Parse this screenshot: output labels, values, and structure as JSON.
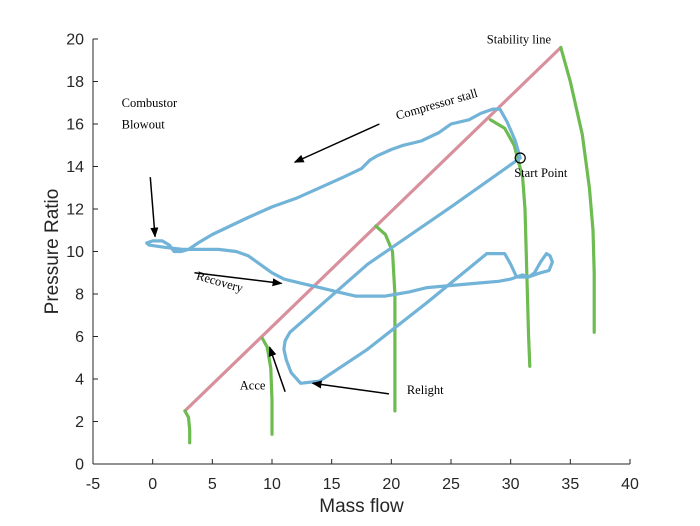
{
  "chart_data": {
    "type": "line",
    "xlabel": "Mass flow",
    "ylabel": "Pressure Ratio",
    "xlim": [
      -5,
      40
    ],
    "ylim": [
      0,
      20
    ],
    "x_ticks": [
      -5,
      0,
      5,
      10,
      15,
      20,
      25,
      30,
      35,
      40
    ],
    "y_ticks": [
      0,
      2,
      4,
      6,
      8,
      10,
      12,
      14,
      16,
      18,
      20
    ],
    "grid": false,
    "series": [
      {
        "color": "#d8909c",
        "style": "line",
        "x": [
          2.7,
          34.2
        ],
        "y": [
          2.5,
          19.6
        ]
      },
      {
        "color": "#6dbb51",
        "style": "line",
        "x": [
          34.2,
          35.0,
          36.0,
          36.6,
          36.9,
          37.0,
          37.0,
          37.0
        ],
        "y": [
          19.6,
          18.0,
          15.5,
          13.0,
          11.0,
          9.0,
          7.5,
          6.2
        ]
      },
      {
        "color": "#6dbb51",
        "style": "line",
        "x": [
          28.3,
          29.5,
          30.3,
          31.0,
          31.2,
          31.3,
          31.4,
          31.5,
          31.6
        ],
        "y": [
          16.2,
          15.8,
          15.0,
          13.5,
          12.0,
          10.0,
          8.0,
          6.0,
          4.6
        ]
      },
      {
        "color": "#6dbb51",
        "style": "line",
        "x": [
          18.7,
          19.5,
          20.1,
          20.3,
          20.3,
          20.3
        ],
        "y": [
          11.2,
          10.8,
          10.0,
          8.0,
          5.0,
          2.5
        ]
      },
      {
        "color": "#6dbb51",
        "style": "line",
        "x": [
          9.2,
          9.6,
          9.9,
          10.0,
          10.0
        ],
        "y": [
          5.9,
          5.5,
          4.5,
          3.0,
          1.4
        ]
      },
      {
        "color": "#6dbb51",
        "style": "line",
        "x": [
          2.7,
          3.0,
          3.1,
          3.1
        ],
        "y": [
          2.5,
          2.2,
          1.6,
          1.0
        ]
      },
      {
        "color": "#72b3d8",
        "style": "line",
        "x": [
          30.8,
          30.4,
          29.7,
          29.2,
          29.1,
          28.5,
          27.5,
          26.5,
          25.0,
          24.0,
          22.5,
          21.0,
          20.0,
          18.8,
          18.2,
          17.5,
          16.0,
          14.0,
          12.0,
          10.0,
          8.0,
          6.5,
          5.0,
          3.8,
          3.0,
          2.4,
          1.8,
          1.4,
          0.8,
          0.0,
          -0.5,
          -0.3,
          1.0,
          2.5,
          4.0,
          5.5,
          7.0,
          8.0,
          9.0,
          10.0,
          11.0,
          12.5,
          14.0,
          15.5,
          17.0,
          18.5,
          19.5,
          20.5,
          21.5,
          23.0,
          25.0,
          27.0,
          29.0,
          30.0,
          30.5,
          31.0,
          31.5,
          32.0,
          32.5,
          33.0,
          33.3,
          33.5,
          33.2,
          32.5,
          32.0,
          31.5,
          31.0,
          30.5,
          30.0,
          29.5,
          28.0,
          23.0,
          18.0,
          14.0,
          12.4,
          11.6,
          11.2,
          11.0,
          11.1,
          11.5,
          18.0,
          25.0,
          30.8
        ],
        "y": [
          14.4,
          15.2,
          16.1,
          16.6,
          16.7,
          16.7,
          16.5,
          16.2,
          16.0,
          15.6,
          15.2,
          15.0,
          14.8,
          14.5,
          14.3,
          13.9,
          13.5,
          13.0,
          12.5,
          12.1,
          11.6,
          11.2,
          10.8,
          10.4,
          10.1,
          10.0,
          10.0,
          10.3,
          10.5,
          10.5,
          10.4,
          10.3,
          10.2,
          10.1,
          10.1,
          10.1,
          10.0,
          9.8,
          9.4,
          9.0,
          8.7,
          8.5,
          8.3,
          8.1,
          7.9,
          7.9,
          7.9,
          8.0,
          8.1,
          8.3,
          8.4,
          8.5,
          8.6,
          8.7,
          8.8,
          8.9,
          8.8,
          9.0,
          9.5,
          9.9,
          9.8,
          9.5,
          9.1,
          9.0,
          8.9,
          8.8,
          8.8,
          8.8,
          9.4,
          9.9,
          9.9,
          7.6,
          5.4,
          3.9,
          3.8,
          4.3,
          4.9,
          5.4,
          5.8,
          6.2,
          9.4,
          12.1,
          14.4
        ]
      }
    ],
    "start_point": {
      "x": 30.8,
      "y": 14.4
    },
    "annotations": [
      {
        "text": "Stability line",
        "x": 28.0,
        "y": 19.8
      },
      {
        "text": "Combustor",
        "x": -2.6,
        "y": 16.8
      },
      {
        "text": "Blowout",
        "x": -2.6,
        "y": 15.8
      },
      {
        "text": "Compressor stall",
        "x": 20.5,
        "y": 16.2,
        "rotate": -16
      },
      {
        "text": "Start Point",
        "x": 30.3,
        "y": 13.5
      },
      {
        "text": "Recovery",
        "x": 3.6,
        "y": 8.7,
        "rotate": 16
      },
      {
        "text": "Acce",
        "x": 7.3,
        "y": 3.5
      },
      {
        "text": "Relight",
        "x": 21.3,
        "y": 3.3
      }
    ],
    "arrows": [
      {
        "from": [
          -0.2,
          13.5
        ],
        "to": [
          0.2,
          10.7
        ]
      },
      {
        "from": [
          19.0,
          16.0
        ],
        "to": [
          11.9,
          14.2
        ]
      },
      {
        "from": [
          3.5,
          9.0
        ],
        "to": [
          10.8,
          8.5
        ]
      },
      {
        "from": [
          11.1,
          3.4
        ],
        "to": [
          9.8,
          5.5
        ]
      },
      {
        "from": [
          19.8,
          3.3
        ],
        "to": [
          13.4,
          3.8
        ]
      }
    ]
  }
}
